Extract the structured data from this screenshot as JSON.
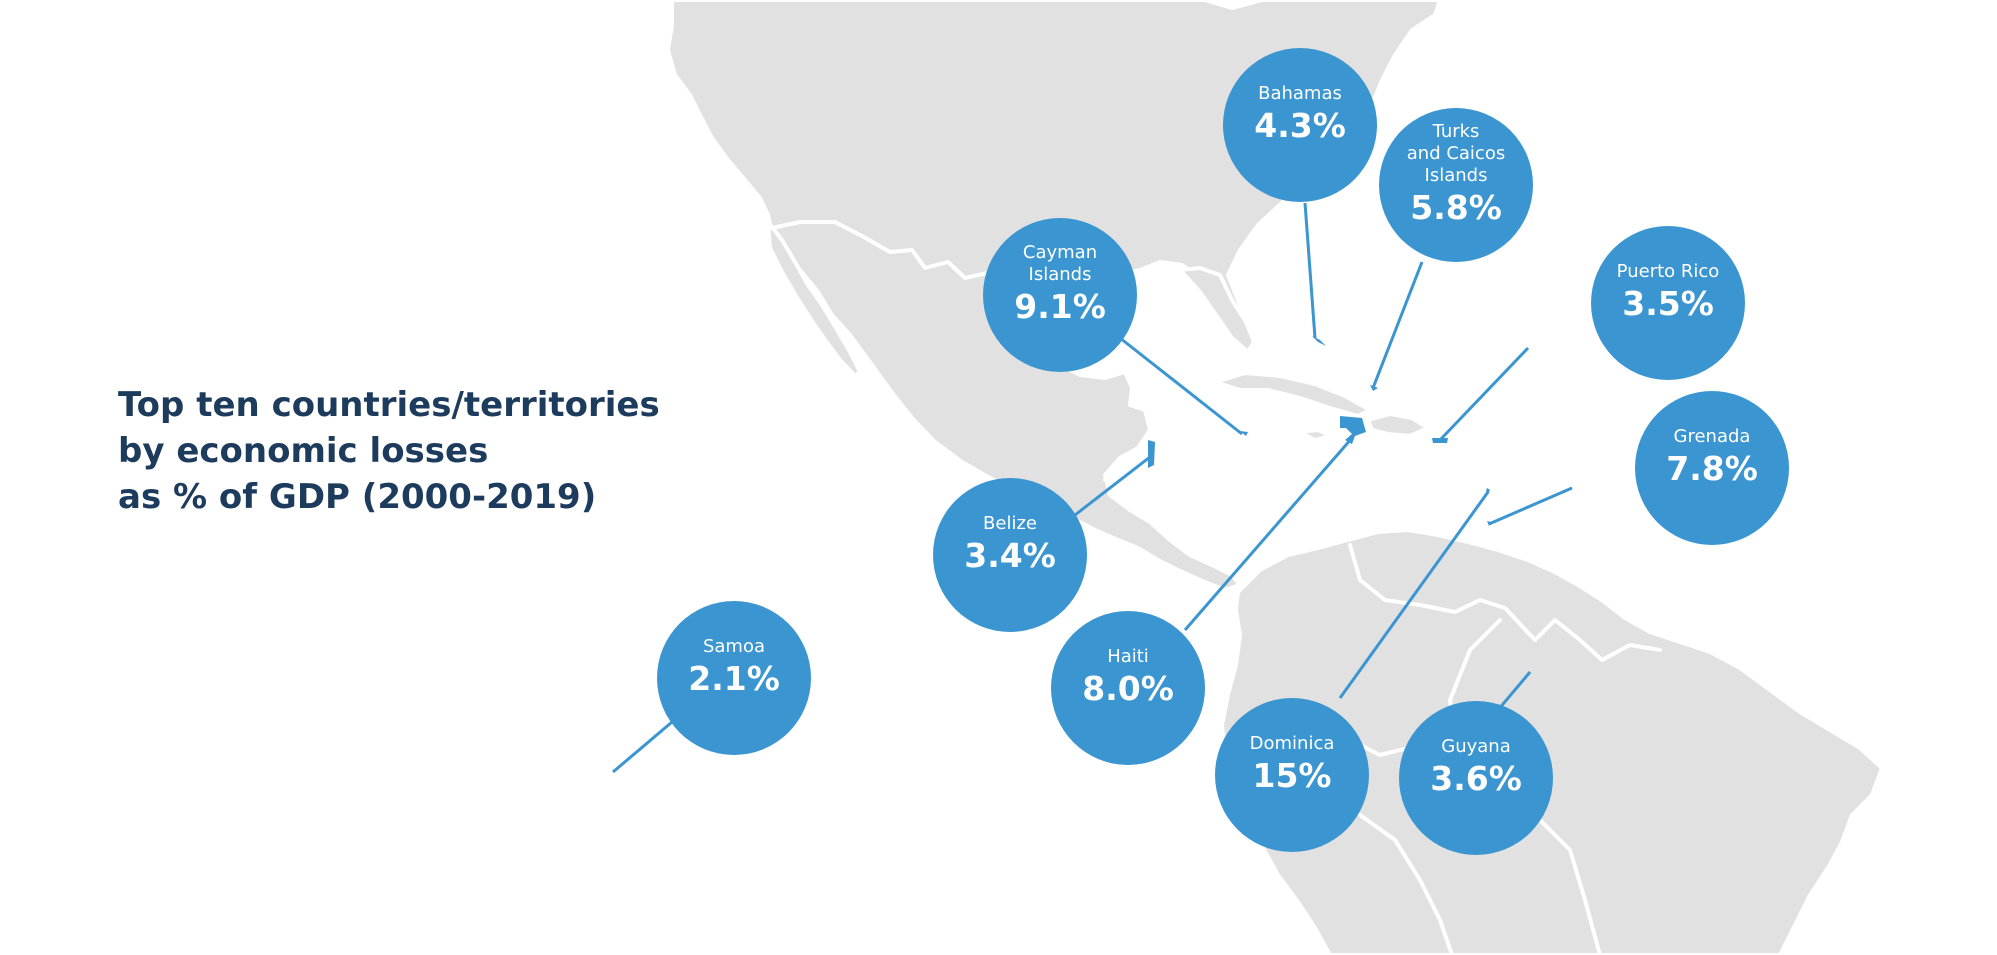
{
  "title": {
    "lines": [
      "Top ten countries/territories",
      "by economic losses",
      "as % of GDP (2000-2019)"
    ]
  },
  "colors": {
    "bubble": "#3a95d0",
    "land": "#e1e1e1",
    "title": "#1d3b5c",
    "background": "#ffffff"
  },
  "countries": [
    {
      "id": "bahamas",
      "name": [
        "Bahamas"
      ],
      "value": "4.3%"
    },
    {
      "id": "turks",
      "name": [
        "Turks",
        "and Caicos",
        "Islands"
      ],
      "value": "5.8%"
    },
    {
      "id": "cayman",
      "name": [
        "Cayman",
        "Islands"
      ],
      "value": "9.1%"
    },
    {
      "id": "puerto",
      "name": [
        "Puerto Rico"
      ],
      "value": "3.5%"
    },
    {
      "id": "grenada",
      "name": [
        "Grenada"
      ],
      "value": "7.8%"
    },
    {
      "id": "belize",
      "name": [
        "Belize"
      ],
      "value": "3.4%"
    },
    {
      "id": "haiti",
      "name": [
        "Haiti"
      ],
      "value": "8.0%"
    },
    {
      "id": "samoa",
      "name": [
        "Samoa"
      ],
      "value": "2.1%"
    },
    {
      "id": "dominica",
      "name": [
        "Dominica"
      ],
      "value": "15%"
    },
    {
      "id": "guyana",
      "name": [
        "Guyana"
      ],
      "value": "3.6%"
    }
  ]
}
